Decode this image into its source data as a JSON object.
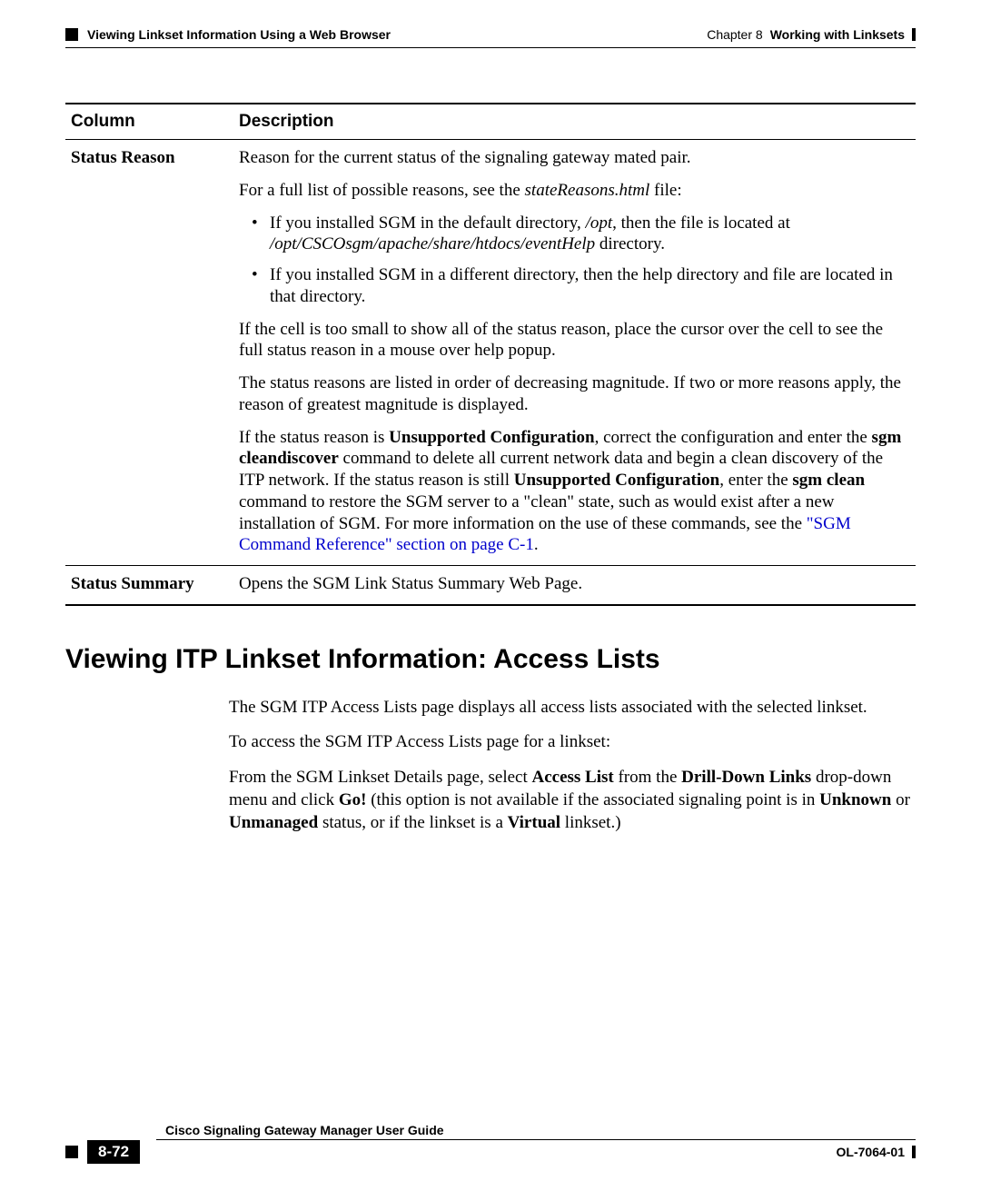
{
  "header": {
    "left_text": "Viewing Linkset Information Using a Web Browser",
    "chapter_label": "Chapter 8",
    "chapter_title": "Working with Linksets"
  },
  "table": {
    "col1": "Column",
    "col2": "Description",
    "rows": [
      {
        "label": "Status Reason",
        "p1": "Reason for the current status of the signaling gateway mated pair.",
        "p2_a": "For a full list of possible reasons, see the ",
        "p2_i": "stateReasons.html",
        "p2_b": " file:",
        "li1_a": "If you installed SGM in the default directory, ",
        "li1_i1": "/opt",
        "li1_b": ", then the file is located at ",
        "li1_i2": "/opt/CSCOsgm/apache/share/htdocs/eventHelp",
        "li1_c": " directory.",
        "li2": "If you installed SGM in a different directory, then the help directory and file are located in that directory.",
        "p3": "If the cell is too small to show all of the status reason, place the cursor over the cell to see the full status reason in a mouse over help popup.",
        "p4": "The status reasons are listed in order of decreasing magnitude. If two or more reasons apply, the reason of greatest magnitude is displayed.",
        "p5_a": "If the status reason is ",
        "p5_b1": "Unsupported Configuration",
        "p5_b": ", correct the configuration and enter the ",
        "p5_b2": "sgm cleandiscover",
        "p5_c": " command to delete all current network data and begin a clean discovery of the ITP network. If the status reason is still ",
        "p5_b3": "Unsupported Configuration",
        "p5_d": ", enter the ",
        "p5_b4": "sgm clean",
        "p5_e": " command to restore the SGM server to a \"clean\" state, such as would exist after a new installation of SGM. For more information on the use of these commands, see the ",
        "p5_link": "\"SGM Command Reference\" section on page C-1",
        "p5_f": "."
      },
      {
        "label": "Status Summary",
        "p1": "Opens the SGM Link Status Summary Web Page."
      }
    ]
  },
  "section": {
    "heading": "Viewing ITP Linkset Information: Access Lists",
    "p1": "The SGM ITP Access Lists page displays all access lists associated with the selected linkset.",
    "p2": "To access the SGM ITP Access Lists page for a linkset:",
    "p3_a": "From the SGM Linkset Details page, select ",
    "p3_b1": "Access List",
    "p3_b": " from the ",
    "p3_b2": "Drill-Down Links",
    "p3_c": " drop-down menu and click ",
    "p3_b3": "Go!",
    "p3_d": " (this option is not available if the associated signaling point is in ",
    "p3_b4": "Unknown",
    "p3_e": " or ",
    "p3_b5": "Unmanaged",
    "p3_f": " status, or if the linkset is a ",
    "p3_b6": "Virtual",
    "p3_g": " linkset.)"
  },
  "footer": {
    "title": "Cisco Signaling Gateway Manager User Guide",
    "page": "8-72",
    "doc_id": "OL-7064-01"
  }
}
